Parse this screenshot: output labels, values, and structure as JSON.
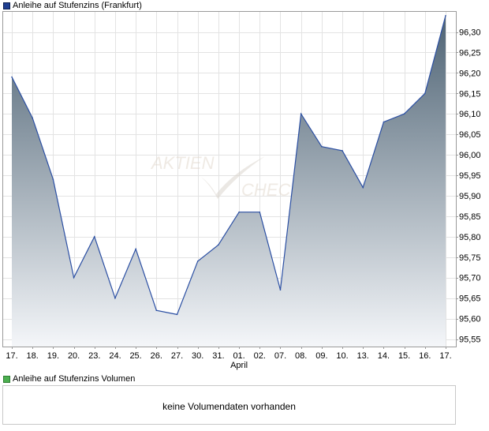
{
  "legend": {
    "price_label": "Anleihe auf Stufenzins (Frankfurt)",
    "price_color": "#1f3f91",
    "volume_label": "Anleihe auf Stufenzins Volumen",
    "volume_color": "#4caf50"
  },
  "watermark": "AKTIENCHECK",
  "volume_empty_message": "keine Volumendaten vorhanden",
  "chart_data": {
    "type": "area",
    "grid": true,
    "y_axis_position": "right",
    "ylim": [
      95.52,
      96.4
    ],
    "yticks": [
      95.55,
      95.6,
      95.65,
      95.7,
      95.75,
      95.8,
      95.85,
      95.9,
      95.95,
      96.0,
      96.05,
      96.1,
      96.15,
      96.2,
      96.25,
      96.3
    ],
    "ytick_labels": [
      "95,55",
      "95,60",
      "95,65",
      "95,70",
      "95,75",
      "95,80",
      "95,85",
      "95,90",
      "95,95",
      "96,00",
      "96,05",
      "96,10",
      "96,15",
      "96,20",
      "96,25",
      "96,30"
    ],
    "x": [
      "17.",
      "18.",
      "19.",
      "20.",
      "23.",
      "24.",
      "25.",
      "26.",
      "27.",
      "30.",
      "31.",
      "01.",
      "02.",
      "07.",
      "08.",
      "09.",
      "10.",
      "13.",
      "14.",
      "15.",
      "16.",
      "17."
    ],
    "x_sublabel": {
      "index": 11,
      "text": "April"
    },
    "series": [
      {
        "values": [
          96.19,
          96.09,
          95.94,
          95.7,
          95.8,
          95.65,
          95.77,
          95.62,
          95.61,
          95.74,
          95.78,
          95.86,
          95.86,
          95.67,
          96.1,
          96.02,
          96.01,
          95.92,
          96.08,
          96.1,
          96.15,
          96.34
        ]
      }
    ],
    "line_color": "#2b4fa3",
    "fill_top_color": "#4e6374",
    "fill_bottom_color": "#f4f6f9"
  }
}
